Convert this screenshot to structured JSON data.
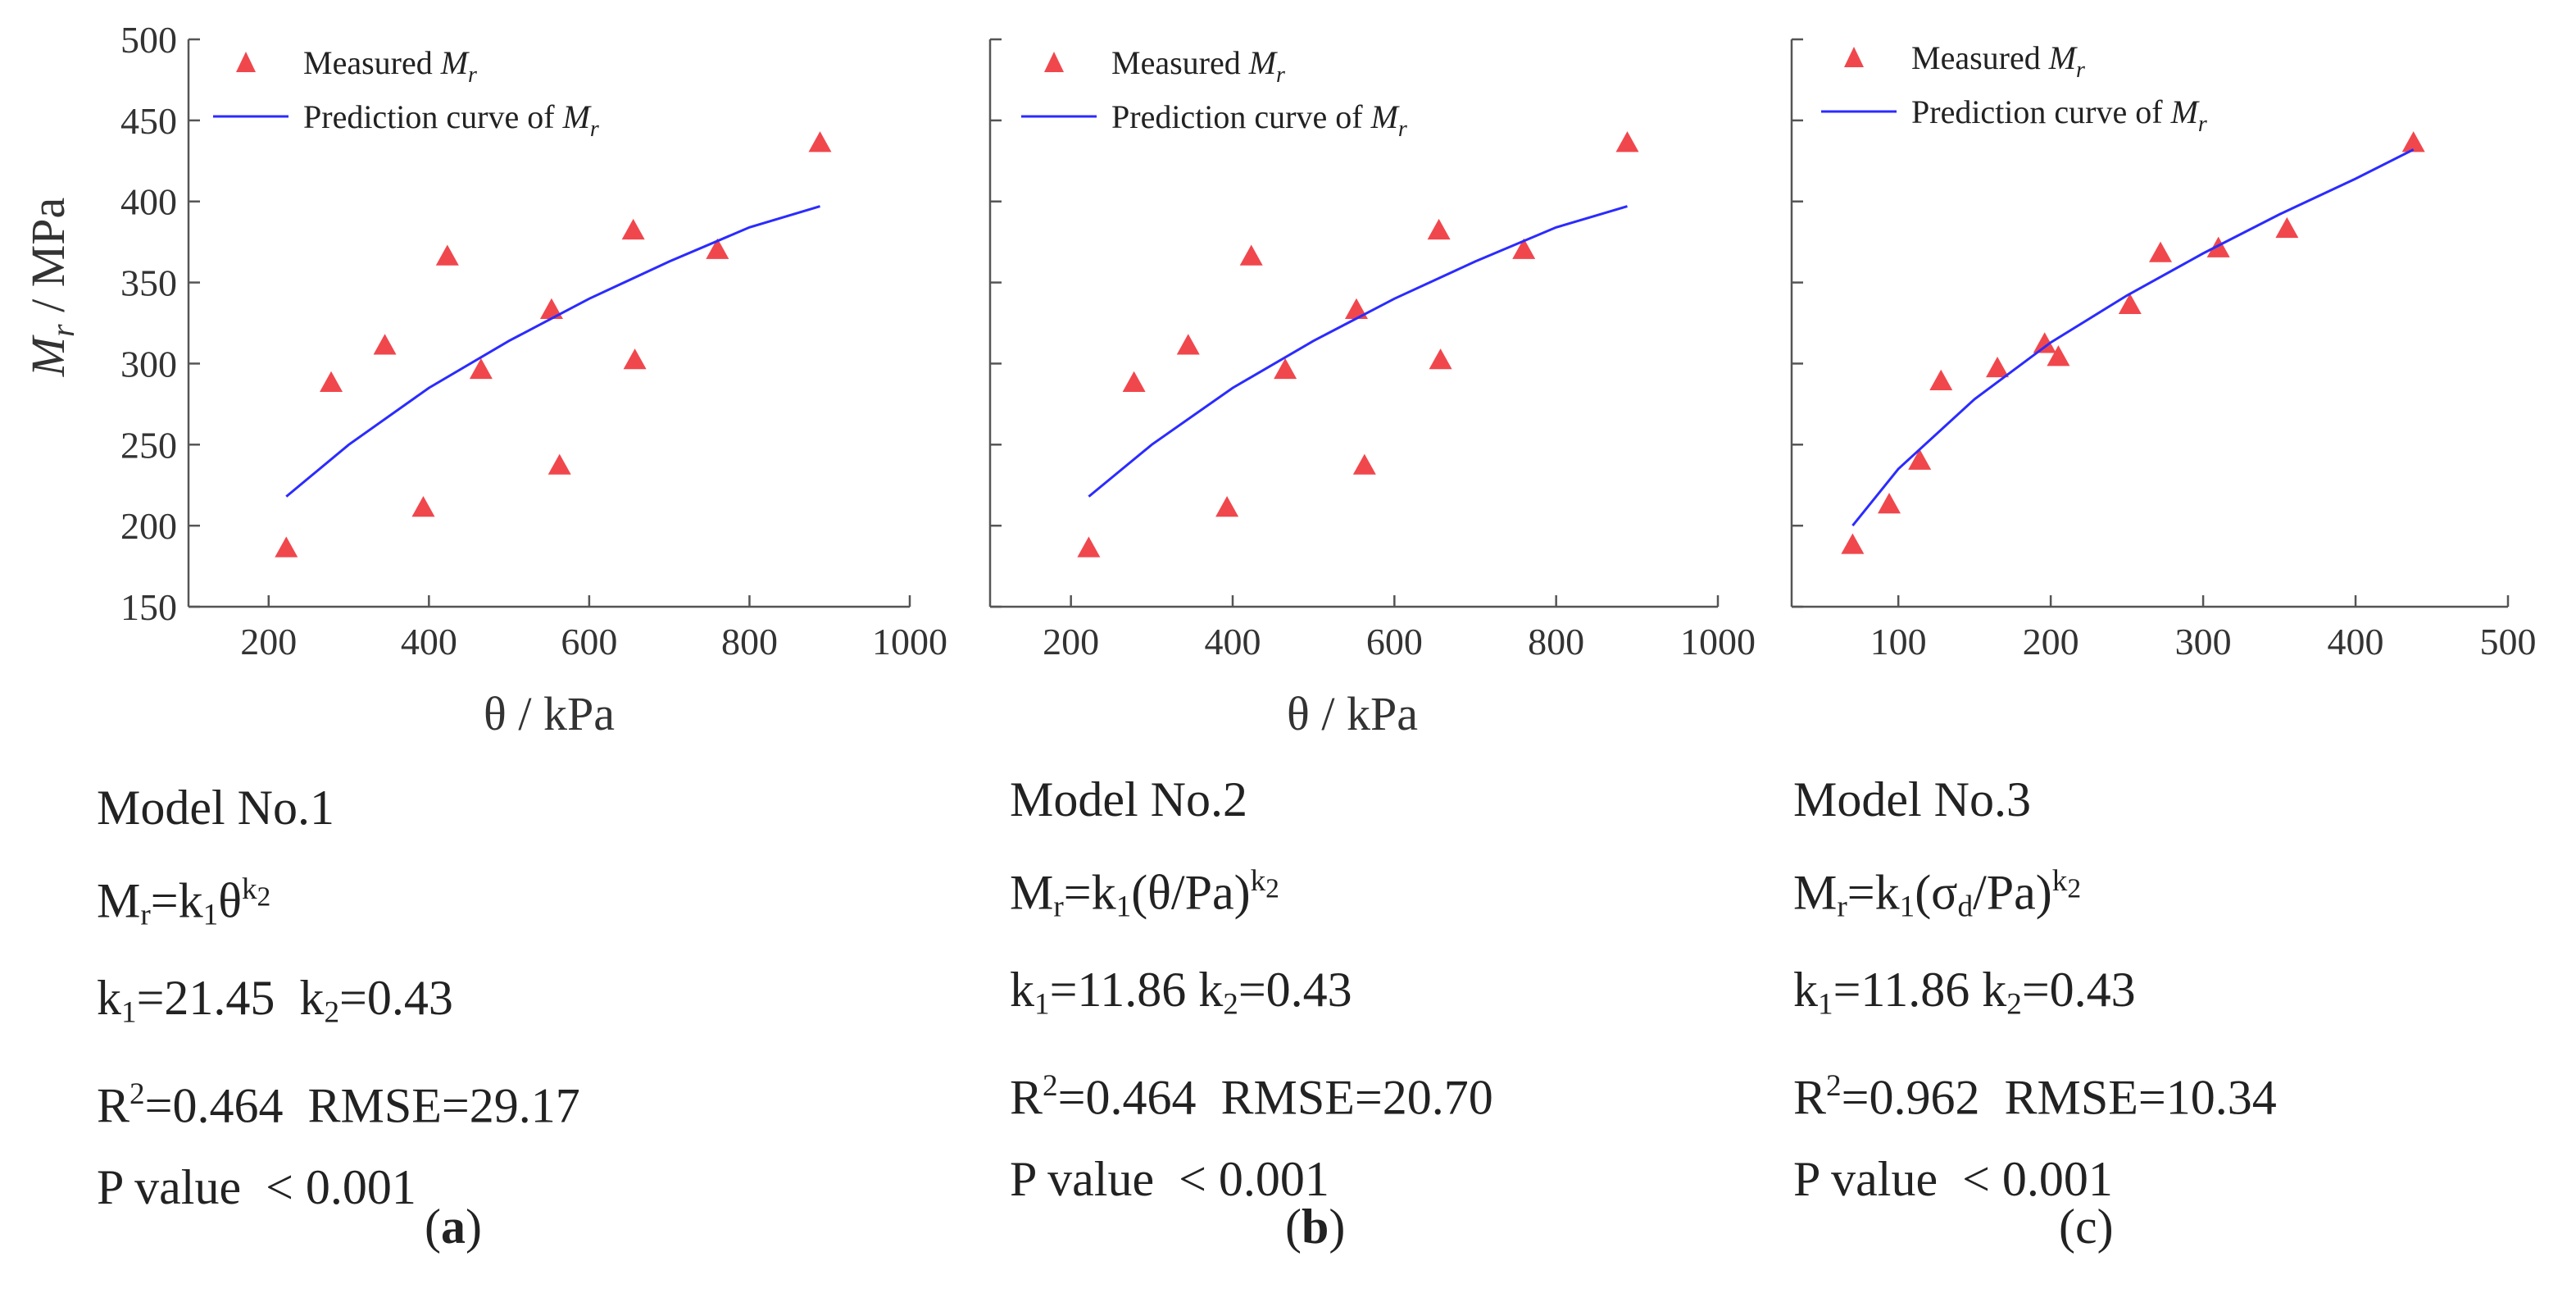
{
  "legend": {
    "measured_prefix": "Measured ",
    "measured_var": "M",
    "measured_sub": "r",
    "curve_prefix": "Prediction curve of ",
    "curve_var": "M",
    "curve_sub": "r"
  },
  "colors": {
    "marker": "#f0474d",
    "curve": "#2b2bff",
    "axis": "#555555"
  },
  "chart_data": [
    {
      "type": "scatter",
      "title": "",
      "xlabel": "θ / kPa",
      "ylabel": "Mr / MPa",
      "xlim": [
        100,
        1000
      ],
      "ylim": [
        150,
        500
      ],
      "xticks": [
        200,
        400,
        600,
        800,
        1000
      ],
      "yticks": [
        150,
        200,
        250,
        300,
        350,
        400,
        450,
        500
      ],
      "x_tick_labels": [
        "200",
        "400",
        "600",
        "800",
        "1000"
      ],
      "y_tick_labels": [
        "150",
        "200",
        "250",
        "300",
        "350",
        "400",
        "450",
        "500"
      ],
      "show_y_tick_labels": true,
      "series": [
        {
          "name": "Measured Mr",
          "kind": "marker",
          "x": [
            222,
            278,
            345,
            393,
            423,
            465,
            553,
            563,
            655,
            657,
            760,
            888
          ],
          "y": [
            186,
            288,
            311,
            211,
            366,
            296,
            333,
            237,
            382,
            302,
            370,
            436
          ]
        },
        {
          "name": "Prediction curve of Mr",
          "kind": "line",
          "x": [
            222,
            300,
            400,
            500,
            600,
            700,
            800,
            888
          ],
          "y": [
            218,
            250,
            285,
            314,
            340,
            363,
            384,
            397
          ]
        }
      ]
    },
    {
      "type": "scatter",
      "title": "",
      "xlabel": "θ / kPa",
      "ylabel": "",
      "xlim": [
        100,
        1000
      ],
      "ylim": [
        150,
        500
      ],
      "xticks": [
        200,
        400,
        600,
        800,
        1000
      ],
      "yticks": [
        150,
        200,
        250,
        300,
        350,
        400,
        450,
        500
      ],
      "x_tick_labels": [
        "200",
        "400",
        "600",
        "800",
        "1000"
      ],
      "y_tick_labels": [],
      "show_y_tick_labels": false,
      "series": [
        {
          "name": "Measured Mr",
          "kind": "marker",
          "x": [
            222,
            278,
            345,
            393,
            423,
            465,
            553,
            563,
            655,
            657,
            760,
            888
          ],
          "y": [
            186,
            288,
            311,
            211,
            366,
            296,
            333,
            237,
            382,
            302,
            370,
            436
          ]
        },
        {
          "name": "Prediction curve of Mr",
          "kind": "line",
          "x": [
            222,
            300,
            400,
            500,
            600,
            700,
            800,
            888
          ],
          "y": [
            218,
            250,
            285,
            314,
            340,
            363,
            384,
            397
          ]
        }
      ]
    },
    {
      "type": "scatter",
      "title": "",
      "xlabel": "",
      "ylabel": "",
      "xlim": [
        30,
        500
      ],
      "ylim": [
        150,
        500
      ],
      "xticks": [
        100,
        200,
        300,
        400,
        500
      ],
      "yticks": [
        150,
        200,
        250,
        300,
        350,
        400,
        450,
        500
      ],
      "x_tick_labels": [
        "100",
        "200",
        "300",
        "400",
        "500"
      ],
      "y_tick_labels": [],
      "show_y_tick_labels": false,
      "series": [
        {
          "name": "Measured Mr",
          "kind": "marker",
          "x": [
            70,
            94,
            114,
            128,
            165,
            196,
            205,
            252,
            272,
            310,
            355,
            438
          ],
          "y": [
            188,
            213,
            240,
            289,
            297,
            312,
            304,
            336,
            368,
            371,
            383,
            436
          ]
        },
        {
          "name": "Prediction curve of Mr",
          "kind": "line",
          "x": [
            70,
            100,
            150,
            200,
            250,
            300,
            350,
            400,
            438
          ],
          "y": [
            200,
            235,
            278,
            313,
            342,
            368,
            392,
            414,
            432
          ]
        }
      ]
    }
  ],
  "models": [
    {
      "name": "Model No.1",
      "eq_lhs": "M",
      "eq_lhs_sub": "r",
      "eq_mid1": "=k",
      "eq_k1_sub": "1",
      "eq_mid2": "θ",
      "eq_sup": "k",
      "eq_sup_sub": "2",
      "k_line_a": "k",
      "k_line_a_sub": "1",
      "k_line_b": "=21.45  k",
      "k_line_b_sub": "2",
      "k_line_c": "=0.43",
      "r2_a": "R",
      "r2_sup": "2",
      "r2_b": "=0.464  RMSE=29.17",
      "pvalue": "P value  < 0.001",
      "panel_label": "a"
    },
    {
      "name": "Model No.2",
      "eq_lhs": "M",
      "eq_lhs_sub": "r",
      "eq_mid1": "=k",
      "eq_k1_sub": "1",
      "eq_mid2": "(θ/Pa)",
      "eq_sup": "k",
      "eq_sup_sub": "2",
      "k_line_a": "k",
      "k_line_a_sub": "1",
      "k_line_b": "=11.86 k",
      "k_line_b_sub": "2",
      "k_line_c": "=0.43",
      "r2_a": "R",
      "r2_sup": "2",
      "r2_b": "=0.464  RMSE=20.70",
      "pvalue": "P value  < 0.001",
      "panel_label": "b"
    },
    {
      "name": "Model No.3",
      "eq_lhs": "M",
      "eq_lhs_sub": "r",
      "eq_mid1": "=k",
      "eq_k1_sub": "1",
      "eq_mid2": "(σ",
      "eq_mid2_sub": "d",
      "eq_mid3": "/Pa)",
      "eq_sup": "k",
      "eq_sup_sub": "2",
      "k_line_a": "k",
      "k_line_a_sub": "1",
      "k_line_b": "=11.86 k",
      "k_line_b_sub": "2",
      "k_line_c": "=0.43",
      "r2_a": "R",
      "r2_sup": "2",
      "r2_b": "=0.962  RMSE=10.34",
      "pvalue": "P value  < 0.001",
      "panel_label": "c"
    }
  ]
}
